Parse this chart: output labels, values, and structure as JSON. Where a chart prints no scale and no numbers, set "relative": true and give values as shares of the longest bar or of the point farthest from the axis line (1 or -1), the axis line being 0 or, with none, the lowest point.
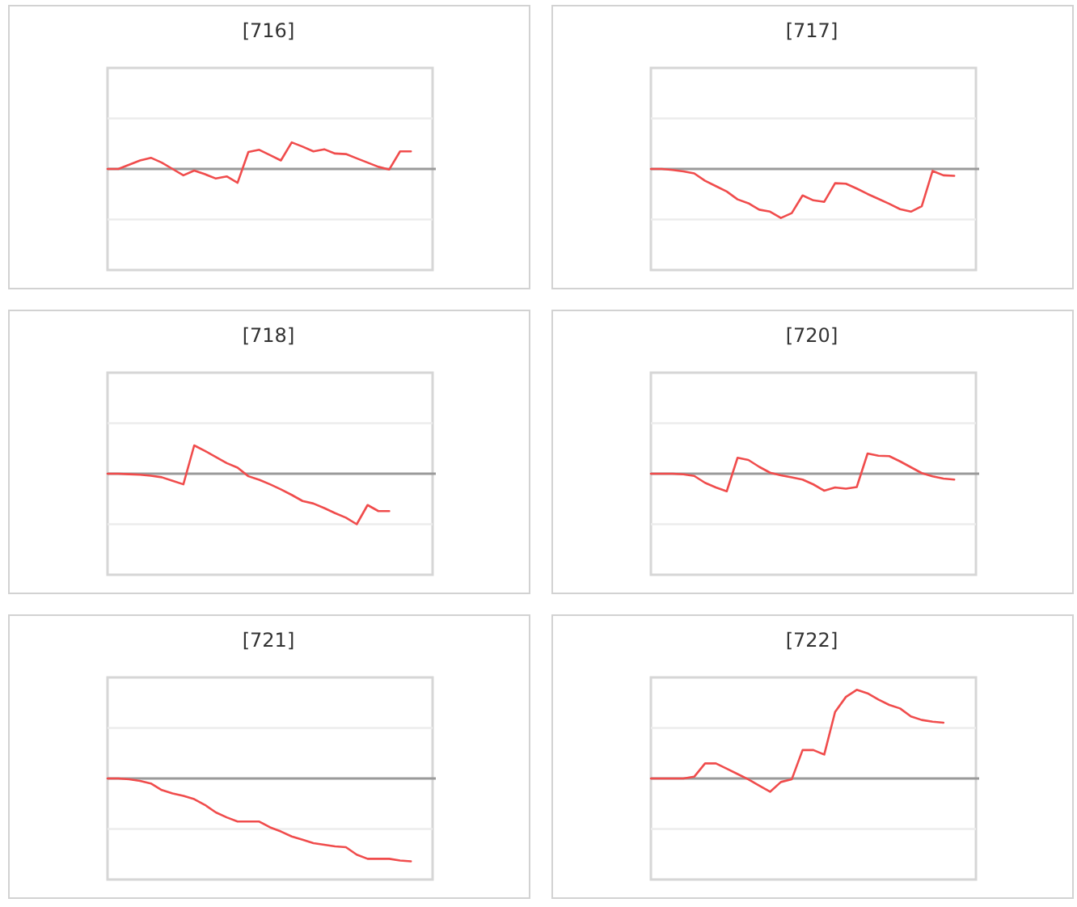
{
  "chart_data": [
    {
      "type": "line",
      "title": "[716]",
      "relative": true,
      "color": "#f04c4c",
      "ref_lines": [
        {
          "axis": "y",
          "value": 1.9,
          "color": "#ececec"
        },
        {
          "axis": "y",
          "value": -1.9,
          "color": "#ececec"
        }
      ],
      "categories": [
        null,
        null,
        null,
        null,
        null,
        null,
        null,
        null,
        null,
        null,
        null,
        null,
        null,
        null,
        null,
        null,
        null,
        null,
        null,
        null,
        null,
        null,
        null,
        null,
        null,
        null,
        null,
        null,
        null,
        null,
        null
      ],
      "values": [
        0,
        0,
        0.16,
        0.32,
        0.42,
        0.24,
        0,
        -0.24,
        -0.06,
        -0.2,
        -0.36,
        -0.28,
        -0.52,
        0.64,
        0.72,
        0.52,
        0.32,
        1,
        0.84,
        0.66,
        0.74,
        0.58,
        0.56,
        0.4,
        0.24,
        0.08,
        -0.02,
        0.66,
        0.66,
        null,
        null
      ]
    },
    {
      "type": "line",
      "title": "[717]",
      "relative": true,
      "color": "#f04c4c",
      "ref_lines": [
        {
          "axis": "y",
          "value": 1.03,
          "color": "#ececec"
        },
        {
          "axis": "y",
          "value": -1.03,
          "color": "#ececec"
        }
      ],
      "categories": [
        null,
        null,
        null,
        null,
        null,
        null,
        null,
        null,
        null,
        null,
        null,
        null,
        null,
        null,
        null,
        null,
        null,
        null,
        null,
        null,
        null,
        null,
        null,
        null,
        null,
        null,
        null,
        null,
        null,
        null,
        null
      ],
      "values": [
        0,
        0,
        -0.02,
        -0.05,
        -0.09,
        -0.24,
        -0.35,
        -0.46,
        -0.62,
        -0.7,
        -0.83,
        -0.87,
        -1,
        -0.9,
        -0.54,
        -0.64,
        -0.67,
        -0.29,
        -0.3,
        -0.4,
        -0.51,
        -0.61,
        -0.71,
        -0.82,
        -0.87,
        -0.76,
        -0.04,
        -0.13,
        -0.14,
        null,
        null
      ]
    },
    {
      "type": "line",
      "title": "[718]",
      "relative": true,
      "color": "#f04c4c",
      "ref_lines": [
        {
          "axis": "y",
          "value": 1,
          "color": "#ececec"
        },
        {
          "axis": "y",
          "value": -1,
          "color": "#ececec"
        }
      ],
      "categories": [
        null,
        null,
        null,
        null,
        null,
        null,
        null,
        null,
        null,
        null,
        null,
        null,
        null,
        null,
        null,
        null,
        null,
        null,
        null,
        null,
        null,
        null,
        null,
        null,
        null,
        null,
        null,
        null,
        null,
        null,
        null
      ],
      "values": [
        0,
        0,
        -0.01,
        -0.02,
        -0.04,
        -0.07,
        -0.14,
        -0.21,
        0.56,
        0.45,
        0.33,
        0.21,
        0.12,
        -0.05,
        -0.12,
        -0.21,
        -0.31,
        -0.42,
        -0.54,
        -0.59,
        -0.68,
        -0.78,
        -0.87,
        -1,
        -0.62,
        -0.74,
        -0.74,
        null,
        null,
        null,
        null
      ]
    },
    {
      "type": "line",
      "title": "[720]",
      "relative": true,
      "color": "#f04c4c",
      "ref_lines": [
        {
          "axis": "y",
          "value": 2.5,
          "color": "#ececec"
        },
        {
          "axis": "y",
          "value": -2.5,
          "color": "#ececec"
        }
      ],
      "categories": [
        null,
        null,
        null,
        null,
        null,
        null,
        null,
        null,
        null,
        null,
        null,
        null,
        null,
        null,
        null,
        null,
        null,
        null,
        null,
        null,
        null,
        null,
        null,
        null,
        null,
        null,
        null,
        null,
        null,
        null,
        null
      ],
      "values": [
        0,
        0,
        0,
        -0.03,
        -0.11,
        -0.45,
        -0.68,
        -0.87,
        0.79,
        0.68,
        0.34,
        0.05,
        -0.08,
        -0.18,
        -0.29,
        -0.53,
        -0.84,
        -0.68,
        -0.74,
        -0.66,
        1,
        0.89,
        0.87,
        0.61,
        0.32,
        0.03,
        -0.13,
        -0.24,
        -0.29,
        null,
        null
      ]
    },
    {
      "type": "line",
      "title": "[721]",
      "relative": true,
      "color": "#f04c4c",
      "ref_lines": [
        {
          "axis": "y",
          "value": 0.61,
          "color": "#ececec"
        },
        {
          "axis": "y",
          "value": -0.61,
          "color": "#ececec"
        }
      ],
      "categories": [
        null,
        null,
        null,
        null,
        null,
        null,
        null,
        null,
        null,
        null,
        null,
        null,
        null,
        null,
        null,
        null,
        null,
        null,
        null,
        null,
        null,
        null,
        null,
        null,
        null,
        null,
        null,
        null,
        null,
        null,
        null
      ],
      "values": [
        0,
        0,
        -0.01,
        -0.03,
        -0.06,
        -0.14,
        -0.18,
        -0.21,
        -0.25,
        -0.32,
        -0.41,
        -0.47,
        -0.52,
        -0.52,
        -0.52,
        -0.59,
        -0.64,
        -0.7,
        -0.74,
        -0.78,
        -0.8,
        -0.82,
        -0.83,
        -0.92,
        -0.97,
        -0.97,
        -0.97,
        -0.99,
        -1,
        null,
        null
      ]
    },
    {
      "type": "line",
      "title": "[722]",
      "relative": true,
      "color": "#f04c4c",
      "ref_lines": [
        {
          "axis": "y",
          "value": 0.57,
          "color": "#ececec"
        },
        {
          "axis": "y",
          "value": -0.57,
          "color": "#ececec"
        }
      ],
      "categories": [
        null,
        null,
        null,
        null,
        null,
        null,
        null,
        null,
        null,
        null,
        null,
        null,
        null,
        null,
        null,
        null,
        null,
        null,
        null,
        null,
        null,
        null,
        null,
        null,
        null,
        null,
        null,
        null,
        null,
        null,
        null
      ],
      "values": [
        0,
        0,
        0,
        0,
        0.02,
        0.17,
        0.17,
        0.11,
        0.05,
        -0.01,
        -0.08,
        -0.15,
        -0.04,
        -0.01,
        0.32,
        0.32,
        0.27,
        0.75,
        0.92,
        1,
        0.96,
        0.89,
        0.83,
        0.79,
        0.7,
        0.66,
        0.64,
        0.63,
        null,
        null,
        null
      ]
    }
  ]
}
